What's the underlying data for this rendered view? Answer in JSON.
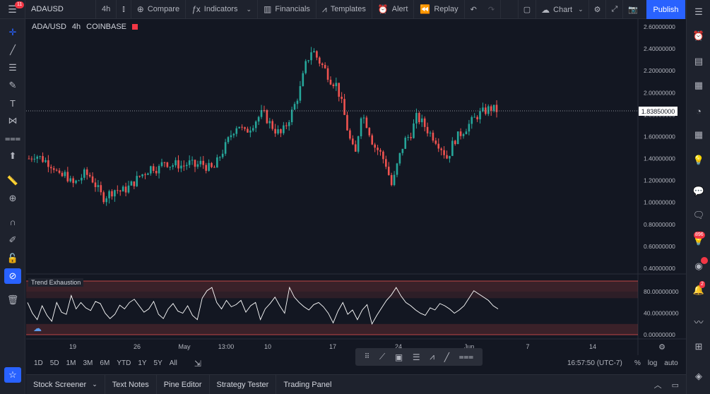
{
  "topbar": {
    "menu_badge": "11",
    "symbol": "ADAUSD",
    "interval": "4h",
    "compare": "Compare",
    "indicators": "Indicators",
    "financials": "Financials",
    "templates": "Templates",
    "alert": "Alert",
    "replay": "Replay",
    "chart_layout": "Chart",
    "publish": "Publish"
  },
  "legend": {
    "pair": "ADA/USD",
    "interval": "4h",
    "exchange": "COINBASE"
  },
  "price_axis": {
    "ticks": [
      "2.60000000",
      "2.40000000",
      "2.20000000",
      "2.00000000",
      "1.80000000",
      "1.60000000",
      "1.40000000",
      "1.20000000",
      "1.00000000",
      "0.80000000",
      "0.60000000",
      "0.40000000"
    ],
    "current_price": "1.83850000"
  },
  "indicator": {
    "name": "Trend Exhaustion",
    "ticks": [
      "80.00000000",
      "40.00000000",
      "0.00000000"
    ]
  },
  "time_axis": {
    "ticks": [
      "19",
      "26",
      "May",
      "13:00",
      "10",
      "17",
      "24",
      "Jun",
      "7",
      "14"
    ]
  },
  "timeframes": [
    "1D",
    "5D",
    "1M",
    "3M",
    "6M",
    "YTD",
    "1Y",
    "5Y",
    "All"
  ],
  "clock": "16:57:50 (UTC-7)",
  "scale_options": {
    "percent": "%",
    "log": "log",
    "auto": "auto"
  },
  "bottom_tabs": [
    "Stock Screener",
    "Text Notes",
    "Pine Editor",
    "Strategy Tester",
    "Trading Panel"
  ],
  "right_badges": {
    "ideas": "896",
    "notifications": "2"
  },
  "colors": {
    "up": "#26a69a",
    "down": "#ef5350",
    "background": "#131722",
    "accent": "#2962ff"
  },
  "chart_data": {
    "type": "candlestick",
    "symbol": "ADA/USD",
    "interval": "4h",
    "ylim": [
      0.35,
      2.65
    ],
    "price_ticks": [
      2.6,
      2.4,
      2.2,
      2.0,
      1.8,
      1.6,
      1.4,
      1.2,
      1.0,
      0.8,
      0.6,
      0.4
    ],
    "last_price": 1.8385,
    "close_path": [
      1.4,
      1.44,
      1.4,
      1.37,
      1.33,
      1.22,
      1.26,
      1.16,
      1.2,
      1.26,
      1.24,
      1.14,
      1.04,
      1.08,
      1.12,
      1.1,
      1.13,
      1.18,
      1.24,
      1.28,
      1.33,
      1.3,
      1.38,
      1.34,
      1.35,
      1.33,
      1.36,
      1.33,
      1.36,
      1.32,
      1.3,
      1.42,
      1.52,
      1.64,
      1.72,
      1.63,
      1.69,
      1.76,
      1.82,
      1.73,
      1.66,
      1.62,
      1.73,
      1.86,
      2.02,
      2.26,
      2.4,
      2.3,
      2.22,
      2.12,
      2.07,
      1.86,
      1.6,
      1.42,
      1.82,
      1.7,
      1.52,
      1.46,
      1.35,
      1.14,
      1.38,
      1.56,
      1.62,
      1.78,
      1.72,
      1.64,
      1.58,
      1.5,
      1.4,
      1.56,
      1.62,
      1.68,
      1.74,
      1.8,
      1.83,
      1.86,
      1.84
    ],
    "indicator": {
      "name": "Trend Exhaustion",
      "ylim": [
        0,
        100
      ],
      "ticks": [
        80,
        40,
        0
      ],
      "values": [
        60,
        40,
        28,
        54,
        36,
        25,
        60,
        42,
        38,
        73,
        48,
        60,
        50,
        45,
        62,
        58,
        40,
        30,
        38,
        55,
        48,
        60,
        66,
        54,
        42,
        48,
        62,
        38,
        30,
        48,
        58,
        44,
        40,
        54,
        36,
        28,
        68,
        82,
        88,
        60,
        48,
        64,
        52,
        56,
        64,
        42,
        54,
        60,
        28,
        48,
        58,
        70,
        54,
        40,
        88,
        70,
        60,
        52,
        46,
        56,
        60,
        52,
        40,
        22,
        44,
        60,
        38,
        46,
        28,
        46,
        56,
        20,
        36,
        50,
        64,
        74,
        88,
        72,
        60,
        54,
        46,
        40,
        36,
        50,
        46,
        58,
        54,
        48,
        40,
        46,
        54,
        68,
        82,
        76,
        70,
        64,
        54,
        48
      ]
    },
    "x_ticks": [
      "19",
      "26",
      "May",
      "13:00",
      "10",
      "17",
      "24",
      "Jun",
      "7",
      "14"
    ]
  }
}
